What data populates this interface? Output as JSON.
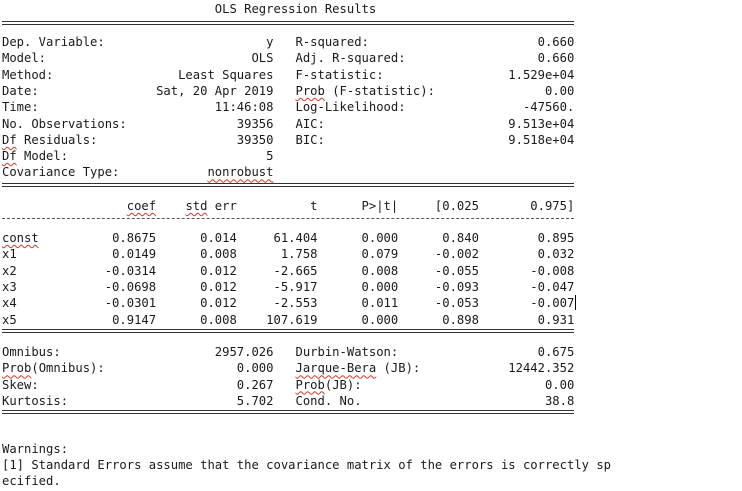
{
  "title": "OLS Regression Results",
  "summary_rows": [
    {
      "l_label": "Dep. Variable:",
      "l_value": "y",
      "r_label": "R-squared:",
      "r_value": "0.660"
    },
    {
      "l_label": "Model:",
      "l_value": "OLS",
      "r_label": "Adj. R-squared:",
      "r_value": "0.660"
    },
    {
      "l_label": "Method:",
      "l_value": "Least Squares",
      "r_label": "F-statistic:",
      "r_value": "1.529e+04"
    },
    {
      "l_label": "Date:",
      "l_value": "Sat, 20 Apr 2019",
      "r_label": "Prob (F-statistic):",
      "r_value": "0.00"
    },
    {
      "l_label": "Time:",
      "l_value": "11:46:08",
      "r_label": "Log-Likelihood:",
      "r_value": "-47560."
    },
    {
      "l_label": "No. Observations:",
      "l_value": "39356",
      "r_label": "AIC:",
      "r_value": "9.513e+04"
    },
    {
      "l_label": "Df Residuals:",
      "l_value": "39350",
      "r_label": "BIC:",
      "r_value": "9.518e+04"
    },
    {
      "l_label": "Df Model:",
      "l_value": "5",
      "r_label": "",
      "r_value": ""
    },
    {
      "l_label": "Covariance Type:",
      "l_value": "nonrobust",
      "r_label": "",
      "r_value": ""
    }
  ],
  "coef_header": [
    "coef",
    "std err",
    "t",
    "P>|t|",
    "[0.025",
    "0.975]"
  ],
  "coef_rows": [
    {
      "name": "const",
      "cells": [
        "0.8675",
        "0.014",
        "61.404",
        "0.000",
        "0.840",
        "0.895"
      ]
    },
    {
      "name": "x1",
      "cells": [
        "0.0149",
        "0.008",
        "1.758",
        "0.079",
        "-0.002",
        "0.032"
      ]
    },
    {
      "name": "x2",
      "cells": [
        "-0.0314",
        "0.012",
        "-2.665",
        "0.008",
        "-0.055",
        "-0.008"
      ]
    },
    {
      "name": "x3",
      "cells": [
        "-0.0698",
        "0.012",
        "-5.917",
        "0.000",
        "-0.093",
        "-0.047"
      ]
    },
    {
      "name": "x4",
      "cells": [
        "-0.0301",
        "0.012",
        "-2.553",
        "0.011",
        "-0.053",
        "-0.007"
      ]
    },
    {
      "name": "x5",
      "cells": [
        "0.9147",
        "0.008",
        "107.619",
        "0.000",
        "0.898",
        "0.931"
      ]
    }
  ],
  "diag_rows": [
    {
      "l_label": "Omnibus:",
      "l_value": "2957.026",
      "r_label": "Durbin-Watson:",
      "r_value": "0.675"
    },
    {
      "l_label": "Prob(Omnibus):",
      "l_value": "0.000",
      "r_label": "Jarque-Bera (JB):",
      "r_value": "12442.352"
    },
    {
      "l_label": "Skew:",
      "l_value": "0.267",
      "r_label": "Prob(JB):",
      "r_value": "0.00"
    },
    {
      "l_label": "Kurtosis:",
      "l_value": "5.702",
      "r_label": "Cond. No.",
      "r_value": "38.8"
    }
  ],
  "warnings_title": "Warnings:",
  "warnings_line1": "[1] Standard Errors assume that the covariance matrix of the errors is correctly sp",
  "warnings_line2": "ecified."
}
